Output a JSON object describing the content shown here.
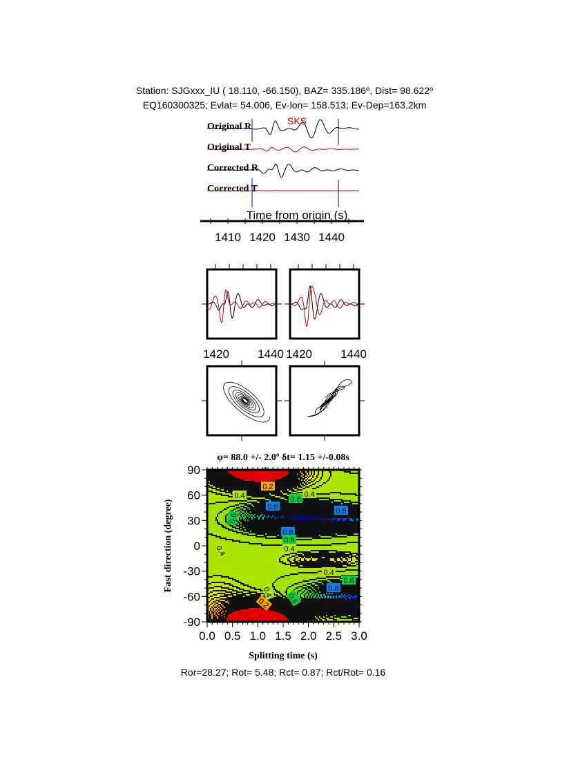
{
  "header": {
    "line1": "Station: SJGxxx_IU (  18.110,  -66.150), BAZ=  335.186º, Dist=   98.622º",
    "line2": "EQ160300325; Evlat=  54.006, Ev-lon= 158.513; Ev-Dep=163.2km"
  },
  "chart_data": [
    {
      "type": "line",
      "traces": [
        "Original R",
        "Original T",
        "Corrected R",
        "Corrected T"
      ],
      "phase_label": "SKS",
      "xlabel": "Time from origin (s)",
      "xticks": [
        "1410",
        "1420",
        "1430",
        "1440"
      ],
      "window_s": [
        1417,
        1442
      ],
      "colors": {
        "R": "#000000",
        "T": "#d00000",
        "window": "#0000c0"
      }
    },
    {
      "type": "line",
      "panels": [
        "original",
        "corrected"
      ],
      "xticks": [
        "1420",
        "1440"
      ],
      "colors": {
        "fast": "#000000",
        "slow": "#d00000"
      }
    },
    {
      "type": "line",
      "panels": [
        "particle-motion-original",
        "particle-motion-corrected"
      ]
    },
    {
      "type": "heatmap",
      "title": "φ= 88.0 +/- 2.0º δt= 1.15 +/-0.08s",
      "xlabel": "Splitting time (s)",
      "ylabel": "Fast direction (degree)",
      "xlim": [
        0,
        3
      ],
      "ylim": [
        -90,
        90
      ],
      "xticks": [
        "0.0",
        "0.5",
        "1.0",
        "1.5",
        "2.0",
        "2.5",
        "3.0"
      ],
      "yticks": [
        "90",
        "60",
        "30",
        "0",
        "-30",
        "-60",
        "-90"
      ],
      "best_fit": {
        "phi": 88.0,
        "dt": 1.15
      },
      "contour_labels": [
        "0.2",
        "0.4",
        "0.6",
        "0.4",
        "0.8",
        "0.8",
        "0.6",
        "0.8",
        "0.6",
        "0.4",
        "0.4",
        "0.4",
        "0.6",
        "0.8",
        "0.4",
        "0.6",
        "0.2"
      ]
    }
  ],
  "footer": "Ror=28.27; Rot= 5.48; Rct= 0.87; Rct/Rot= 0.16"
}
